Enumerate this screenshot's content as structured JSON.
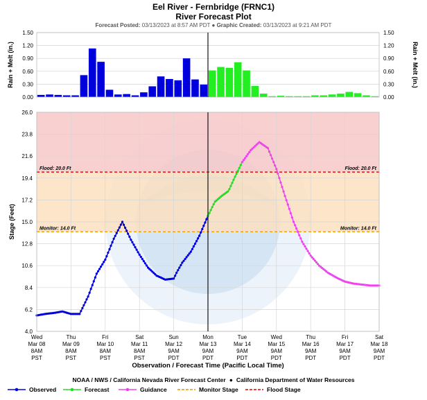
{
  "header": {
    "title": "Eel River - Fernbridge (FRNC1)",
    "subtitle": "River Forecast Plot",
    "posted_label": "Forecast Posted:",
    "posted_value": "03/13/2023 at 8:57 AM PDT",
    "created_label": "Graphic Created:",
    "created_value": "03/13/2023 at 9:21 AM PDT"
  },
  "footer": {
    "agency": "NOAA / NWS / California Nevada River Forecast Center",
    "partner": "California Department of Water Resources"
  },
  "legend": [
    {
      "label": "Observed",
      "color": "#0000dd",
      "style": "dot-line"
    },
    {
      "label": "Forecast",
      "color": "#22dd22",
      "style": "dot-line"
    },
    {
      "label": "Guidance",
      "color": "#ee44ee",
      "style": "dot-line"
    },
    {
      "label": "Monitor Stage",
      "color": "#e69900",
      "style": "dash"
    },
    {
      "label": "Flood Stage",
      "color": "#dd0000",
      "style": "dash"
    }
  ],
  "chart_data": [
    {
      "type": "bar",
      "ylabel": "Rain + Melt (in.)",
      "ylabel_right": "Rain + Melt (in.)",
      "ylim": [
        0,
        1.5
      ],
      "yticks": [
        "0.00",
        "0.30",
        "0.60",
        "0.90",
        "1.20",
        "1.50"
      ],
      "xlim": [
        0,
        10
      ],
      "bar_hours": 6,
      "observed_color": "#0000dd",
      "forecast_color": "#22ee22",
      "observed": {
        "x": [
          0.125,
          0.375,
          0.625,
          0.875,
          1.125,
          1.375,
          1.625,
          1.875,
          2.125,
          2.375,
          2.625,
          2.875,
          3.125,
          3.375,
          3.625,
          3.875,
          4.125,
          4.375,
          4.625,
          4.875
        ],
        "values": [
          0.05,
          0.06,
          0.05,
          0.04,
          0.04,
          0.51,
          1.13,
          0.82,
          0.17,
          0.06,
          0.07,
          0.04,
          0.11,
          0.25,
          0.48,
          0.42,
          0.39,
          0.9,
          0.41,
          0.29
        ]
      },
      "forecast": {
        "x": [
          5.125,
          5.375,
          5.625,
          5.875,
          6.125,
          6.375,
          6.625,
          6.875,
          7.125,
          7.375,
          7.625,
          7.875,
          8.125,
          8.375,
          8.625,
          8.875,
          9.125,
          9.375,
          9.625,
          9.875
        ],
        "values": [
          0.62,
          0.7,
          0.68,
          0.81,
          0.62,
          0.26,
          0.08,
          0.02,
          0.03,
          0.02,
          0.02,
          0.02,
          0.04,
          0.04,
          0.06,
          0.08,
          0.12,
          0.09,
          0.04,
          0.02
        ]
      }
    },
    {
      "type": "line",
      "title": "",
      "xlabel": "Observation / Forecast Time (Pacific Local Time)",
      "ylabel": "Stage (Feet)",
      "ylim": [
        4.0,
        26.0
      ],
      "yticks": [
        "4.0",
        "6.2",
        "8.4",
        "10.6",
        "12.8",
        "15.0",
        "17.2",
        "19.4",
        "21.6",
        "23.8",
        "26.0"
      ],
      "xlim": [
        0,
        10
      ],
      "x_unit": "days since Wed Mar 08 8AM PST",
      "xticks": [
        {
          "day": "Wed",
          "date": "Mar 08",
          "time": "8AM",
          "tz": "PST"
        },
        {
          "day": "Thu",
          "date": "Mar 09",
          "time": "8AM",
          "tz": "PST"
        },
        {
          "day": "Fri",
          "date": "Mar 10",
          "time": "8AM",
          "tz": "PST"
        },
        {
          "day": "Sat",
          "date": "Mar 11",
          "time": "8AM",
          "tz": "PST"
        },
        {
          "day": "Sun",
          "date": "Mar 12",
          "time": "9AM",
          "tz": "PDT"
        },
        {
          "day": "Mon",
          "date": "Mar 13",
          "time": "9AM",
          "tz": "PDT"
        },
        {
          "day": "Tue",
          "date": "Mar 14",
          "time": "9AM",
          "tz": "PDT"
        },
        {
          "day": "Wed",
          "date": "Mar 15",
          "time": "9AM",
          "tz": "PDT"
        },
        {
          "day": "Thu",
          "date": "Mar 16",
          "time": "9AM",
          "tz": "PDT"
        },
        {
          "day": "Fri",
          "date": "Mar 17",
          "time": "9AM",
          "tz": "PDT"
        },
        {
          "day": "Sat",
          "date": "Mar 18",
          "time": "9AM",
          "tz": "PDT"
        }
      ],
      "now_x": 5.0,
      "bands": [
        {
          "name": "flood",
          "from": 20.0,
          "to": 26.0,
          "color": "#f8c8c8"
        },
        {
          "name": "monitor",
          "from": 14.0,
          "to": 20.0,
          "color": "#fbe0c0"
        }
      ],
      "thresholds": [
        {
          "label": "Flood: 20.0 Ft",
          "value": 20.0,
          "color": "#dd0000"
        },
        {
          "label": "Monitor: 14.0 Ft",
          "value": 14.0,
          "color": "#e69900"
        }
      ],
      "series": [
        {
          "name": "Observed",
          "color": "#0000dd",
          "x": [
            0,
            0.25,
            0.5,
            0.75,
            1.0,
            1.25,
            1.5,
            1.75,
            2.0,
            2.25,
            2.5,
            2.75,
            3.0,
            3.25,
            3.5,
            3.75,
            4.0,
            4.1,
            4.25,
            4.5,
            4.75,
            5.0
          ],
          "y": [
            5.6,
            5.75,
            5.85,
            6.0,
            5.75,
            5.75,
            7.5,
            9.8,
            11.2,
            13.3,
            15.0,
            13.2,
            11.7,
            10.4,
            9.6,
            9.2,
            9.3,
            10.0,
            10.9,
            12.0,
            13.6,
            15.6
          ]
        },
        {
          "name": "Forecast",
          "color": "#22dd22",
          "x": [
            5.0,
            5.2,
            5.4,
            5.6,
            5.8,
            6.0
          ],
          "y": [
            15.6,
            17.0,
            17.6,
            18.1,
            19.6,
            21.0
          ]
        },
        {
          "name": "Guidance",
          "color": "#ee44ee",
          "x": [
            6.0,
            6.25,
            6.5,
            6.75,
            7.0,
            7.25,
            7.5,
            7.75,
            8.0,
            8.25,
            8.5,
            8.75,
            9.0,
            9.25,
            9.5,
            9.75,
            10.0
          ],
          "y": [
            21.0,
            22.2,
            23.0,
            22.4,
            20.3,
            17.6,
            15.0,
            13.0,
            11.6,
            10.6,
            9.9,
            9.4,
            9.0,
            8.8,
            8.7,
            8.6,
            8.6
          ]
        }
      ]
    }
  ]
}
